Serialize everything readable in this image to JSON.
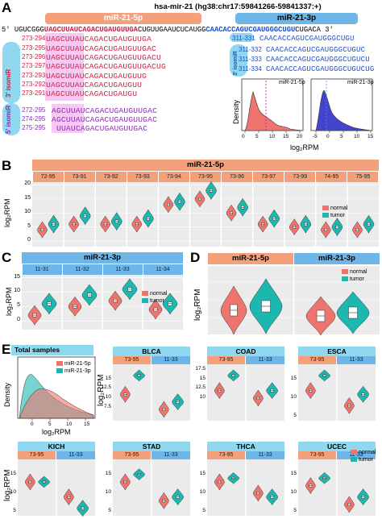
{
  "panel_letters": {
    "a": "A",
    "b": "B",
    "c": "C",
    "d": "D",
    "e": "E"
  },
  "colors": {
    "normal": "#f0746e",
    "tumor": "#1cb8b0",
    "mir5p": "#f4a07a",
    "mir3p": "#6fb6e8",
    "red_seq": "#cc2244",
    "purple_seq": "#8b2db5",
    "blue_seq": "#1a4fd0",
    "pink_hl": "#f4b0ec",
    "cyan_hl": "#8fd8f0"
  },
  "panel_a": {
    "title": "hsa-mir-21 (hg38:chr17:59841266-59841337:+)",
    "mir5p_label": "miR-21-5p",
    "mir3p_label": "miR-21-3p",
    "precursor": {
      "prefix": "5' UGUCGGG",
      "mature5p": "UAGCUUAUCAGACUGAUGUUGA",
      "loop": "CUGUUGAAUCUCAUGG",
      "mature3p": "CAACACCAGUCGAUGGGCUGU",
      "suffix": "CUGACA 3'"
    },
    "iso3_label": "3' isomiR",
    "iso5_label": "5' isomiR",
    "iso3_3p_label": "3' isomiR",
    "rows_5p_main": [
      {
        "pos": "273-294",
        "seq": "UAGCUUAUCAGACUGAUGUUGA"
      }
    ],
    "rows_5p_iso3": [
      {
        "pos": "273-295",
        "seq": "UAGCUUAUCAGACUGAUGUUGAC"
      },
      {
        "pos": "273-296",
        "seq": "UAGCUUAUCAGACUGAUGUUGACU"
      },
      {
        "pos": "273-297",
        "seq": "UAGCUUAUCAGACUGAUGUUGACUG"
      },
      {
        "pos": "273-293",
        "seq": "UAGCUUAUCAGACUGAUGUUG"
      },
      {
        "pos": "273-292",
        "seq": "UAGCUUAUCAGACUGAUGUU"
      },
      {
        "pos": "273-291",
        "seq": "UAGCUUAUCAGACUGAUGU"
      }
    ],
    "rows_5p_iso5": [
      {
        "pos": "272-295",
        "seq": "AGCUUAUCAGACUGAUGUUGAC"
      },
      {
        "pos": "274-295",
        "seq": "AGCUUAUCAGACUGAUGUUGAC"
      },
      {
        "pos": "275-295",
        "seq": "UUAUCAGACUGAUGUUGAC"
      }
    ],
    "rows_3p_main": [
      {
        "pos": "311-331",
        "seq": "CAACACCAGUCGAUGGGCUGU"
      }
    ],
    "rows_3p_iso": [
      {
        "pos": "311-332",
        "seq": "CAACACCAGUCGAUGGGCUGUC"
      },
      {
        "pos": "311-333",
        "seq": "CAACACCAGUCGAUGGGCUGUCU"
      },
      {
        "pos": "311-334",
        "seq": "CAACACCAGUCGAUGGGCUGUCUG"
      }
    ],
    "density_ylabel": "Density",
    "density_xlabel": "log₂RPM",
    "density_5p_title": "miR-21-5p",
    "density_3p_title": "miR-21-3p",
    "density_5p_ticks": [
      "0",
      "5",
      "10",
      "15",
      "20"
    ],
    "density_3p_ticks": [
      "-5",
      "0",
      "5",
      "10",
      "15"
    ]
  },
  "panel_b": {
    "header": "miR-21-5p",
    "ylabel": "log₂RPM",
    "yticks": [
      "20",
      "15",
      "10",
      "5",
      "0"
    ],
    "facets": [
      "72-95",
      "73-91",
      "73-92",
      "73-93",
      "73-94",
      "73-95",
      "73-96",
      "73-97",
      "73-99",
      "74-95",
      "75-95"
    ],
    "legend": [
      "normal",
      "tumor"
    ]
  },
  "panel_c": {
    "header": "miR-21-3p",
    "ylabel": "log₂RPM",
    "yticks": [
      "15",
      "10",
      "5",
      "0"
    ],
    "facets": [
      "11-31",
      "11-32",
      "11-33",
      "11-34"
    ],
    "legend": [
      "normal",
      "tumor"
    ]
  },
  "panel_d": {
    "header_left": "miR-21-5p",
    "header_right": "miR-21-3p",
    "ylabel": "log₂RPM",
    "legend": [
      "normal",
      "tumor"
    ]
  },
  "panel_e": {
    "total_title": "Total samples",
    "total_legend": [
      "miR-21-5p",
      "miR-21-3p"
    ],
    "total_ylabel": "Density",
    "total_xlabel": "log₂RPM",
    "total_xticks": [
      "0",
      "5",
      "10",
      "15"
    ],
    "ylabel": "log₂RPM",
    "legend": [
      "normal",
      "tumor"
    ],
    "cancers": [
      {
        "name": "BLCA",
        "f1": "73-95",
        "f2": "11-33",
        "yticks": [
          "15",
          "12.5",
          "10",
          "7.5"
        ]
      },
      {
        "name": "COAD",
        "f1": "73-95",
        "f2": "11-33",
        "yticks": [
          "17.5",
          "15",
          "12.5",
          "10"
        ]
      },
      {
        "name": "ESCA",
        "f1": "73-95",
        "f2": "11-33",
        "yticks": [
          "15",
          "10",
          "5"
        ]
      },
      {
        "name": "KICH",
        "f1": "73-95",
        "f2": "11-33",
        "yticks": [
          "15",
          "10",
          "5"
        ]
      },
      {
        "name": "STAD",
        "f1": "73-95",
        "f2": "11-33",
        "yticks": [
          "15",
          "10",
          "5"
        ]
      },
      {
        "name": "THCA",
        "f1": "73-95",
        "f2": "11-33",
        "yticks": [
          "15",
          "10",
          "5"
        ]
      },
      {
        "name": "UCEC",
        "f1": "73-95",
        "f2": "11-33",
        "yticks": [
          "15",
          "10",
          "5"
        ]
      }
    ]
  }
}
